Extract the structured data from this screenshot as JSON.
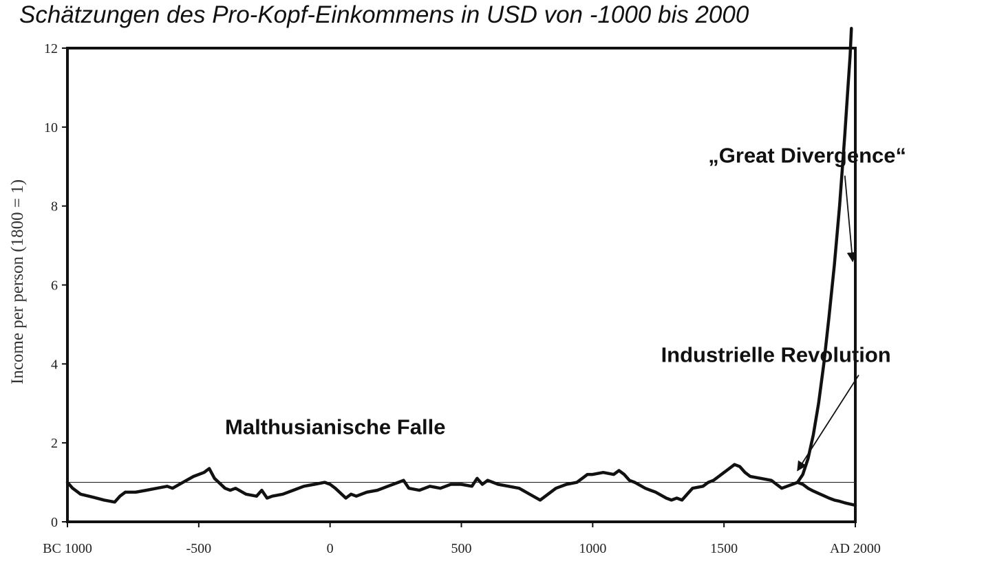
{
  "title": "Schätzungen des Pro-Kopf-Einkommens in USD von -1000 bis 2000",
  "chart_data": {
    "type": "line",
    "title": "Schätzungen des Pro-Kopf-Einkommens in USD von -1000 bis 2000",
    "xlabel": "",
    "ylabel": "Income per person (1800 = 1)",
    "xlim": [
      -1000,
      2000
    ],
    "ylim": [
      0,
      12
    ],
    "x_ticks": [
      {
        "value": -1000,
        "label": "BC 1000"
      },
      {
        "value": -500,
        "label": "-500"
      },
      {
        "value": 0,
        "label": "0"
      },
      {
        "value": 500,
        "label": "500"
      },
      {
        "value": 1000,
        "label": "1000"
      },
      {
        "value": 1500,
        "label": "1500"
      },
      {
        "value": 2000,
        "label": "AD 2000"
      }
    ],
    "y_ticks": [
      0,
      2,
      4,
      6,
      8,
      10,
      12
    ],
    "reference_line": {
      "y": 1.0
    },
    "grid": false,
    "series": [
      {
        "x": [
          -1000,
          -980,
          -950,
          -900,
          -860,
          -820,
          -800,
          -780,
          -740,
          -700,
          -660,
          -620,
          -600,
          -560,
          -520,
          -500,
          -480,
          -460,
          -440,
          -400,
          -380,
          -360,
          -320,
          -280,
          -260,
          -240,
          -220,
          -180,
          -140,
          -100,
          -60,
          -20,
          0,
          20,
          60,
          80,
          100,
          140,
          180,
          220,
          260,
          280,
          300,
          340,
          380,
          420,
          460,
          500,
          540,
          560,
          580,
          600,
          640,
          680,
          720,
          760,
          800,
          820,
          860,
          900,
          940,
          960,
          980,
          1000,
          1040,
          1080,
          1100,
          1120,
          1140,
          1160,
          1200,
          1220,
          1240,
          1280,
          1300,
          1320,
          1340,
          1360,
          1380,
          1420,
          1440,
          1460,
          1480,
          1500,
          1520,
          1540,
          1560,
          1580,
          1600,
          1640,
          1680,
          1700,
          1720,
          1740,
          1760,
          1780
        ],
        "values": [
          1.0,
          0.85,
          0.7,
          0.62,
          0.55,
          0.5,
          0.65,
          0.75,
          0.75,
          0.8,
          0.85,
          0.9,
          0.85,
          1.0,
          1.15,
          1.2,
          1.25,
          1.35,
          1.1,
          0.85,
          0.8,
          0.85,
          0.7,
          0.65,
          0.8,
          0.6,
          0.65,
          0.7,
          0.8,
          0.9,
          0.95,
          1.0,
          0.95,
          0.85,
          0.6,
          0.7,
          0.65,
          0.75,
          0.8,
          0.9,
          1.0,
          1.05,
          0.85,
          0.8,
          0.9,
          0.85,
          0.95,
          0.95,
          0.9,
          1.1,
          0.95,
          1.05,
          0.95,
          0.9,
          0.85,
          0.7,
          0.55,
          0.65,
          0.85,
          0.95,
          1.0,
          1.1,
          1.2,
          1.2,
          1.25,
          1.2,
          1.3,
          1.2,
          1.05,
          1.0,
          0.85,
          0.8,
          0.75,
          0.6,
          0.55,
          0.6,
          0.55,
          0.7,
          0.85,
          0.9,
          1.0,
          1.05,
          1.15,
          1.25,
          1.35,
          1.45,
          1.4,
          1.25,
          1.15,
          1.1,
          1.05,
          0.95,
          0.85,
          0.9,
          0.95,
          1.0
        ]
      },
      {
        "x": [
          1780,
          1800,
          1820,
          1840,
          1860,
          1880,
          1900,
          1920,
          1940,
          1960,
          1980,
          2000
        ],
        "values": [
          1.0,
          0.95,
          0.85,
          0.78,
          0.72,
          0.66,
          0.6,
          0.55,
          0.52,
          0.48,
          0.45,
          0.42
        ]
      },
      {
        "x": [
          1780,
          1800,
          1820,
          1840,
          1860,
          1880,
          1900,
          1920,
          1940,
          1960,
          1970,
          1980,
          1985
        ],
        "values": [
          1.0,
          1.2,
          1.6,
          2.2,
          3.0,
          4.0,
          5.2,
          6.5,
          8.0,
          9.8,
          10.8,
          11.8,
          12.5
        ]
      }
    ],
    "annotations": [
      {
        "text": "„Great Divergence“",
        "x": 1440,
        "y": 9.1,
        "arrow_to": {
          "x": 1990,
          "y": 6.6
        }
      },
      {
        "text": "Industrielle Revolution",
        "x": 1260,
        "y": 4.05,
        "arrow_to": {
          "x": 1780,
          "y": 1.3
        }
      },
      {
        "text": "Malthusianische Falle",
        "x": -400,
        "y": 2.22
      }
    ]
  }
}
